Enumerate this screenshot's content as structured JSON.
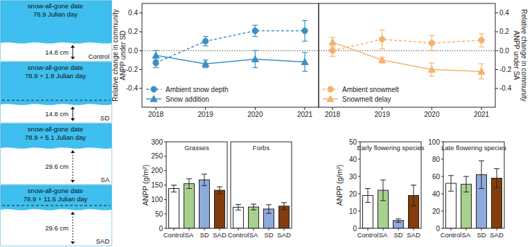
{
  "chart_data": [
    {
      "type": "line",
      "ylabel": "Relative change in community ANPP under SD",
      "categories": [
        "2018",
        "2019",
        "2020",
        "2021"
      ],
      "ylim": [
        -0.6,
        0.5
      ],
      "yticks": [
        -0.4,
        -0.2,
        {
          "value": 0,
          "label": "0.0"
        },
        0.2,
        0.4
      ],
      "legend": "lower left",
      "series": [
        {
          "name": "Ambient snow depth",
          "color": "#3a8fc4",
          "marker": "circle",
          "line_style": "dashed",
          "values": [
            -0.13,
            0.1,
            0.21,
            0.21
          ],
          "errors": [
            0.05,
            0.05,
            0.06,
            0.11
          ]
        },
        {
          "name": "Snow addition",
          "color": "#3a8fc4",
          "marker": "triangle",
          "line_style": "solid",
          "values": [
            -0.05,
            -0.14,
            -0.09,
            -0.12
          ],
          "errors": [
            0.05,
            0.04,
            0.09,
            0.1
          ]
        }
      ]
    },
    {
      "type": "line",
      "ylabel": "Relative change in community ANPP under SA",
      "categories": [
        "2018",
        "2019",
        "2020",
        "2021"
      ],
      "ylim": [
        -0.6,
        0.5
      ],
      "yticks": [
        -0.4,
        -0.2,
        {
          "value": 0,
          "label": "0.0"
        },
        0.2,
        0.4
      ],
      "legend": "lower left",
      "series": [
        {
          "name": "Ambient snowmelt",
          "color": "#f6b26b",
          "marker": "circle",
          "line_style": "dashed",
          "values": [
            0.0,
            0.12,
            0.08,
            0.11
          ],
          "errors": [
            0.06,
            0.1,
            0.08,
            0.07
          ]
        },
        {
          "name": "Snowmelt delay",
          "color": "#f6b26b",
          "marker": "triangle",
          "line_style": "solid",
          "values": [
            0.09,
            -0.1,
            -0.2,
            -0.22
          ],
          "errors": [
            0.05,
            0.03,
            0.07,
            0.08
          ]
        }
      ]
    },
    {
      "type": "bar",
      "title": "Grasses",
      "ylabel": "ANPP (g/m²)",
      "categories": [
        "Control",
        "SA",
        "SD",
        "SAD"
      ],
      "values": [
        138,
        155,
        168,
        132
      ],
      "errors": [
        12,
        17,
        20,
        12
      ],
      "colors": [
        "#ffffff",
        "#a9d18e",
        "#8faadc",
        "#843c0c"
      ],
      "ylim": [
        0,
        300
      ],
      "yticks": [
        0,
        50,
        100,
        150,
        200,
        250,
        300
      ]
    },
    {
      "type": "bar",
      "title": "Forbs",
      "categories": [
        "Control",
        "SA",
        "SD",
        "SAD"
      ],
      "values": [
        73,
        74,
        67,
        77
      ],
      "errors": [
        10,
        10,
        15,
        12
      ],
      "colors": [
        "#ffffff",
        "#a9d18e",
        "#8faadc",
        "#843c0c"
      ],
      "ylim": [
        0,
        300
      ],
      "tick_labels": "x"
    },
    {
      "type": "bar",
      "title": "Early flowering species",
      "ylabel": "ANPP (g/m²)",
      "categories": [
        "Control",
        "SA",
        "SD",
        "SAD"
      ],
      "values": [
        19,
        22,
        4.5,
        19
      ],
      "errors": [
        4,
        6,
        1,
        6
      ],
      "colors": [
        "#ffffff",
        "#a9d18e",
        "#8faadc",
        "#843c0c"
      ],
      "ylim": [
        0,
        50
      ],
      "yticks": [
        0,
        10,
        20,
        30,
        40,
        50
      ]
    },
    {
      "type": "bar",
      "title": "Late flowering species",
      "categories": [
        "Control",
        "SA",
        "SD",
        "SAD"
      ],
      "values": [
        52,
        51,
        62,
        58
      ],
      "errors": [
        9,
        9,
        16,
        11
      ],
      "colors": [
        "#ffffff",
        "#a9d18e",
        "#8faadc",
        "#843c0c"
      ],
      "ylim": [
        0,
        100
      ],
      "yticks": [
        0,
        20,
        40,
        60,
        80,
        100
      ]
    }
  ],
  "schematic": {
    "panels": [
      {
        "title": "snow-all-gone date",
        "date": "78.9 Julian day",
        "depth": "14.8 cm",
        "label": "Control"
      },
      {
        "title": "snow-all-gone date",
        "date": "78.9 + 1.8 Julian day",
        "depth": "14.8 cm",
        "label": "SD"
      },
      {
        "title": "snow-all-gone date",
        "date": "78.9 + 5.1 Julian day",
        "depth": "29.6 cm",
        "label": "SA"
      },
      {
        "title": "snow-all-gone date",
        "date": "78.9 + 11.6 Julian day",
        "depth": "29.6 cm",
        "label": "SAD"
      }
    ]
  }
}
